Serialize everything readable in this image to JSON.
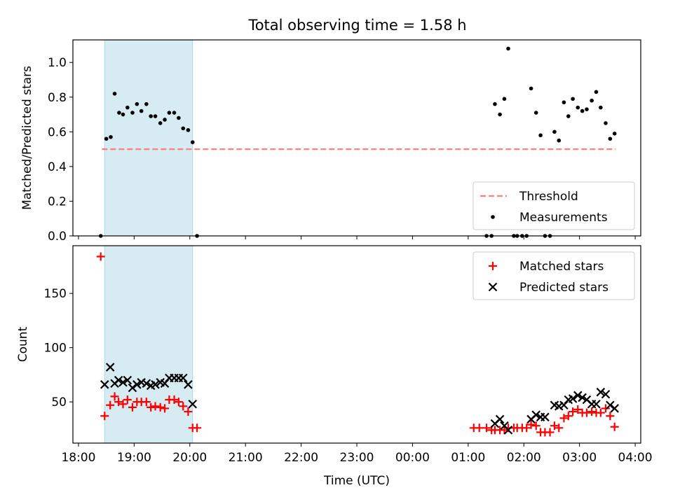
{
  "figure": {
    "title": "Total observing time = 1.58 h"
  },
  "chart_data": [
    {
      "type": "scatter",
      "panel": "top",
      "ylabel": "Matched/Predicted stars",
      "xlabel": "",
      "xlim": [
        17.9,
        28.1
      ],
      "ylim": [
        0,
        1.13
      ],
      "yticks": [
        0.0,
        0.2,
        0.4,
        0.6,
        0.8,
        1.0
      ],
      "ytick_labels": [
        "0.0",
        "0.2",
        "0.4",
        "0.6",
        "0.8",
        "1.0"
      ],
      "shaded_span": {
        "x": [
          18.47,
          20.05
        ],
        "color": "#add8e6"
      },
      "legend": {
        "position": "lower-right",
        "entries": [
          "Threshold",
          "Measurements"
        ]
      },
      "series": [
        {
          "name": "Threshold",
          "kind": "line",
          "style": "dashed",
          "color": "#ff7f7f",
          "x": [
            18.42,
            27.65
          ],
          "y": [
            0.5,
            0.5
          ]
        },
        {
          "name": "Measurements",
          "kind": "points",
          "color": "#000000",
          "x": [
            18.4,
            18.5,
            18.58,
            18.65,
            18.73,
            18.8,
            18.88,
            18.97,
            19.05,
            19.13,
            19.22,
            19.3,
            19.38,
            19.47,
            19.55,
            19.63,
            19.72,
            19.8,
            19.88,
            19.97,
            20.05,
            20.13,
            25.33,
            25.42,
            25.48,
            25.57,
            25.65,
            25.72,
            25.82,
            25.88,
            25.97,
            26.05,
            26.13,
            26.22,
            26.3,
            26.38,
            26.47,
            26.55,
            26.63,
            26.72,
            26.8,
            26.88,
            26.97,
            27.05,
            27.13,
            27.22,
            27.3,
            27.38,
            27.47,
            27.55,
            27.63
          ],
          "y": [
            0.0,
            0.56,
            0.57,
            0.82,
            0.71,
            0.7,
            0.74,
            0.71,
            0.76,
            0.72,
            0.76,
            0.69,
            0.69,
            0.65,
            0.67,
            0.71,
            0.71,
            0.68,
            0.62,
            0.61,
            0.54,
            0.0,
            0.0,
            0.0,
            0.76,
            0.7,
            0.79,
            1.08,
            0.0,
            0.0,
            0.0,
            0.0,
            0.85,
            0.71,
            0.58,
            0.0,
            0.0,
            0.6,
            0.55,
            0.77,
            0.69,
            0.79,
            0.74,
            0.72,
            0.73,
            0.78,
            0.83,
            0.74,
            0.65,
            0.56,
            0.59
          ]
        }
      ]
    },
    {
      "type": "scatter",
      "panel": "bottom",
      "ylabel": "Count",
      "xlabel": "Time (UTC)",
      "xlim": [
        17.9,
        28.1
      ],
      "ylim": [
        12,
        194
      ],
      "yticks": [
        50,
        100,
        150
      ],
      "ytick_labels": [
        "50",
        "100",
        "150"
      ],
      "xticks": [
        18,
        19,
        20,
        21,
        22,
        23,
        24,
        25,
        26,
        27,
        28
      ],
      "xtick_labels": [
        "18:00",
        "19:00",
        "20:00",
        "21:00",
        "22:00",
        "23:00",
        "00:00",
        "01:00",
        "02:00",
        "03:00",
        "04:00"
      ],
      "shaded_span": {
        "x": [
          18.47,
          20.05
        ],
        "color": "#add8e6"
      },
      "legend": {
        "position": "top-right",
        "entries": [
          "Matched stars",
          "Predicted stars"
        ]
      },
      "series": [
        {
          "name": "Matched stars",
          "kind": "plus",
          "color": "#ff0000",
          "x": [
            18.4,
            18.47,
            18.57,
            18.65,
            18.72,
            18.8,
            18.88,
            18.97,
            19.05,
            19.13,
            19.22,
            19.3,
            19.38,
            19.47,
            19.55,
            19.63,
            19.72,
            19.8,
            19.88,
            19.97,
            20.05,
            20.13,
            25.1,
            25.2,
            25.33,
            25.42,
            25.48,
            25.57,
            25.65,
            25.72,
            25.82,
            25.88,
            25.97,
            26.05,
            26.13,
            26.22,
            26.3,
            26.38,
            26.47,
            26.55,
            26.63,
            26.72,
            26.8,
            26.88,
            26.97,
            27.05,
            27.13,
            27.22,
            27.3,
            27.38,
            27.47,
            27.55,
            27.63
          ],
          "y": [
            184,
            37,
            47,
            55,
            50,
            48,
            52,
            45,
            50,
            50,
            50,
            45,
            46,
            45,
            44,
            52,
            52,
            50,
            46,
            41,
            26,
            26,
            26,
            26,
            26,
            24,
            24,
            24,
            24,
            26,
            26,
            26,
            26,
            26,
            29,
            28,
            22,
            22,
            22,
            28,
            26,
            35,
            37,
            41,
            43,
            40,
            40,
            41,
            40,
            40,
            44,
            37,
            27
          ]
        },
        {
          "name": "Predicted stars",
          "kind": "x",
          "color": "#000000",
          "x": [
            18.47,
            18.57,
            18.65,
            18.72,
            18.8,
            18.88,
            18.97,
            19.05,
            19.13,
            19.22,
            19.3,
            19.38,
            19.47,
            19.55,
            19.63,
            19.72,
            19.8,
            19.88,
            19.97,
            20.05,
            25.48,
            25.57,
            25.65,
            25.72,
            26.13,
            26.22,
            26.3,
            26.38,
            26.55,
            26.63,
            26.72,
            26.8,
            26.88,
            26.97,
            27.05,
            27.13,
            27.22,
            27.3,
            27.38,
            27.47,
            27.55,
            27.63
          ],
          "y": [
            66,
            82,
            67,
            70,
            68,
            70,
            63,
            66,
            68,
            67,
            65,
            66,
            68,
            67,
            72,
            72,
            72,
            72,
            66,
            48,
            30,
            34,
            28,
            24,
            34,
            38,
            36,
            36,
            47,
            46,
            47,
            52,
            53,
            56,
            54,
            52,
            48,
            48,
            59,
            57,
            47,
            44
          ]
        }
      ]
    }
  ]
}
